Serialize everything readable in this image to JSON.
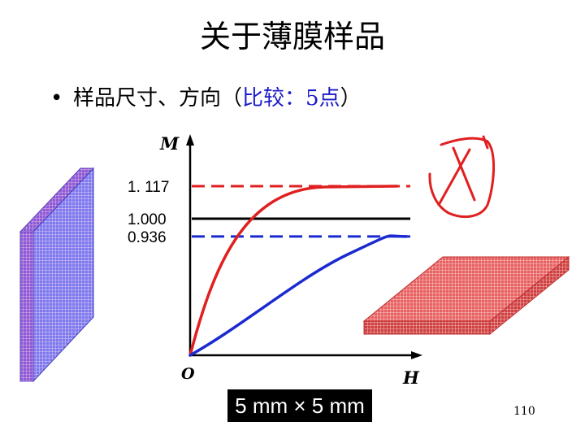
{
  "slide": {
    "title": "关于薄膜样品",
    "bullet_prefix": "样品尺寸、方向（",
    "bullet_highlight": "比较：5点",
    "bullet_suffix": "）",
    "dimension_label": "5 mm × 5 mm",
    "page_number": "110"
  },
  "chart_data": {
    "type": "line",
    "ylabel": "M",
    "xlabel": "H",
    "origin_label": "O",
    "levels": [
      {
        "label": "1. 117",
        "value": 1.117,
        "style": "dashed",
        "color": "#e02020"
      },
      {
        "label": "1.000",
        "value": 1.0,
        "style": "solid",
        "color": "#000000"
      },
      {
        "label": "0.936",
        "value": 0.936,
        "style": "dashed",
        "color": "#1a2ad0"
      }
    ],
    "curves": [
      {
        "color": "#e02020",
        "saturation": 1.117
      },
      {
        "color": "#1a2ad0",
        "saturation": 0.936
      }
    ]
  },
  "colors": {
    "red": "#e02020",
    "blue": "#1a2ad0",
    "red_sample": "#e85050",
    "blue_sample": "#5a5ae0"
  },
  "icons": {
    "cross_mark": "hand-drawn-x-icon"
  }
}
